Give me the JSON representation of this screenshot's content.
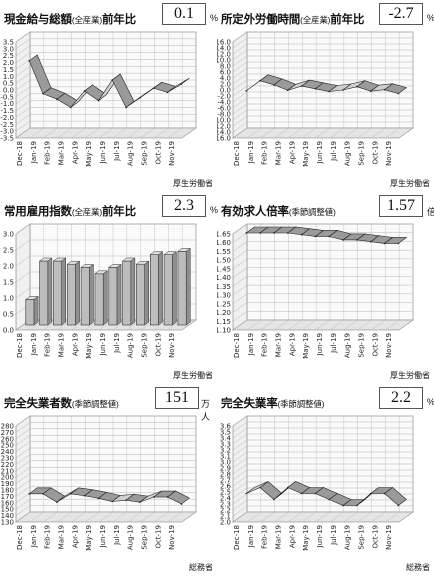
{
  "panels": [
    {
      "title": "現金給与総額",
      "subtitle": "(全産業)",
      "title_suffix": "前年比",
      "value": "0.1",
      "unit": "%",
      "source": "厚生労働省"
    },
    {
      "title": "所定外労働時間",
      "subtitle": "(全産業)",
      "title_suffix": "前年比",
      "value": "-2.7",
      "unit": "%",
      "source": "厚生労働省"
    },
    {
      "title": "常用雇用指数",
      "subtitle": "(全産業)",
      "title_suffix": "前年比",
      "value": "2.3",
      "unit": "%",
      "source": "厚生労働省"
    },
    {
      "title": "有効求人倍率",
      "subtitle": "(季節調整値)",
      "title_suffix": "",
      "value": "1.57",
      "unit": "倍",
      "source": "厚生労働省"
    },
    {
      "title": "完全失業者数",
      "subtitle": "(季節調整値)",
      "title_suffix": "",
      "value": "151",
      "unit": "万人",
      "source": "総務省"
    },
    {
      "title": "完全失業率",
      "subtitle": "(季節調整値)",
      "title_suffix": "",
      "value": "2.2",
      "unit": "%",
      "source": "総務省"
    }
  ],
  "chart_data": [
    {
      "type": "line",
      "style": "3d-ribbon",
      "categories": [
        "Dec-18",
        "Jan-19",
        "Feb-19",
        "Mar-19",
        "Apr-19",
        "May-19",
        "Jun-19",
        "Jul-19",
        "Aug-19",
        "Sep-19",
        "Oct-19",
        "Nov-19"
      ],
      "values": [
        1.8,
        -0.6,
        -1.0,
        -1.6,
        -0.4,
        -1.1,
        0.4,
        -1.6,
        -0.9,
        -0.2,
        -0.5,
        0.1
      ],
      "y_ticks": [
        "3.5",
        "3.0",
        "2.5",
        "2.0",
        "1.5",
        "1.0",
        "0.5",
        "0.0",
        "-0.5",
        "-1.0",
        "-1.5",
        "-2.0",
        "-2.5",
        "-3.0",
        "-3.5"
      ],
      "ylim": [
        -3.5,
        3.5
      ],
      "grid": true
    },
    {
      "type": "line",
      "style": "3d-ribbon",
      "categories": [
        "Dec-18",
        "Jan-19",
        "Feb-19",
        "Mar-19",
        "Apr-19",
        "May-19",
        "Jun-19",
        "Jul-19",
        "Aug-19",
        "Sep-19",
        "Oct-19",
        "Nov-19"
      ],
      "values": [
        -1.8,
        1.6,
        0.2,
        -1.6,
        -0.2,
        -1.1,
        -2.0,
        -1.5,
        -0.4,
        -1.9,
        -1.4,
        -2.7
      ],
      "y_ticks": [
        "16.0",
        "14.0",
        "12.0",
        "10.0",
        "8.0",
        "6.0",
        "4.0",
        "2.0",
        "0.0",
        "-2.0",
        "-4.0",
        "-6.0",
        "-8.0",
        "-10.0",
        "-12.0",
        "-14.0",
        "-16.0"
      ],
      "ylim": [
        -16,
        16
      ],
      "grid": true
    },
    {
      "type": "bar",
      "style": "3d",
      "categories": [
        "Dec-18",
        "Jan-19",
        "Feb-19",
        "Mar-19",
        "Apr-19",
        "May-19",
        "Jun-19",
        "Jul-19",
        "Aug-19",
        "Sep-19",
        "Oct-19",
        "Nov-19"
      ],
      "values": [
        0.8,
        2.0,
        2.0,
        1.9,
        1.8,
        1.6,
        1.8,
        2.0,
        1.9,
        2.2,
        2.2,
        2.3
      ],
      "y_ticks": [
        "3.0",
        "2.5",
        "2.0",
        "1.5",
        "1.0",
        "0.5",
        "0.0"
      ],
      "ylim": [
        0,
        3
      ],
      "grid": true
    },
    {
      "type": "line",
      "style": "3d-ribbon",
      "categories": [
        "Dec-18",
        "Jan-19",
        "Feb-19",
        "Mar-19",
        "Apr-19",
        "May-19",
        "Jun-19",
        "Jul-19",
        "Aug-19",
        "Sep-19",
        "Oct-19",
        "Nov-19"
      ],
      "values": [
        1.63,
        1.63,
        1.63,
        1.63,
        1.62,
        1.61,
        1.61,
        1.59,
        1.59,
        1.58,
        1.57,
        1.57
      ],
      "y_ticks": [
        "1.65",
        "1.60",
        "1.55",
        "1.50",
        "1.45",
        "1.40",
        "1.35",
        "1.30",
        "1.25",
        "1.20",
        "1.15",
        "1.10"
      ],
      "ylim": [
        1.1,
        1.65
      ],
      "grid": true
    },
    {
      "type": "line",
      "style": "3d-ribbon",
      "categories": [
        "Dec-18",
        "Jan-19",
        "Feb-19",
        "Mar-19",
        "Apr-19",
        "May-19",
        "Jun-19",
        "Jul-19",
        "Aug-19",
        "Sep-19",
        "Oct-19",
        "Nov-19"
      ],
      "values": [
        167,
        167,
        154,
        167,
        164,
        160,
        155,
        157,
        154,
        162,
        162,
        151
      ],
      "y_ticks": [
        "280",
        "270",
        "260",
        "250",
        "240",
        "230",
        "220",
        "210",
        "200",
        "190",
        "180",
        "170",
        "160",
        "150",
        "140",
        "130"
      ],
      "ylim": [
        130,
        280
      ],
      "grid": true
    },
    {
      "type": "line",
      "style": "3d-ribbon",
      "categories": [
        "Dec-18",
        "Jan-19",
        "Feb-19",
        "Mar-19",
        "Apr-19",
        "May-19",
        "Jun-19",
        "Jul-19",
        "Aug-19",
        "Sep-19",
        "Oct-19",
        "Nov-19"
      ],
      "values": [
        2.4,
        2.5,
        2.3,
        2.5,
        2.4,
        2.4,
        2.3,
        2.2,
        2.2,
        2.4,
        2.4,
        2.2
      ],
      "y_ticks": [
        "3.6",
        "3.5",
        "3.4",
        "3.3",
        "3.2",
        "3.1",
        "3.0",
        "2.9",
        "2.8",
        "2.7",
        "2.6",
        "2.5",
        "2.4",
        "2.3",
        "2.2",
        "2.1",
        "2.0"
      ],
      "ylim": [
        2.0,
        3.6
      ],
      "grid": true
    }
  ],
  "colors": {
    "ribbon": "#9a9a9a",
    "ribbon_top": "#cfcfcf",
    "bar": "#bdbdbd",
    "grid": "#b5b5b5"
  }
}
